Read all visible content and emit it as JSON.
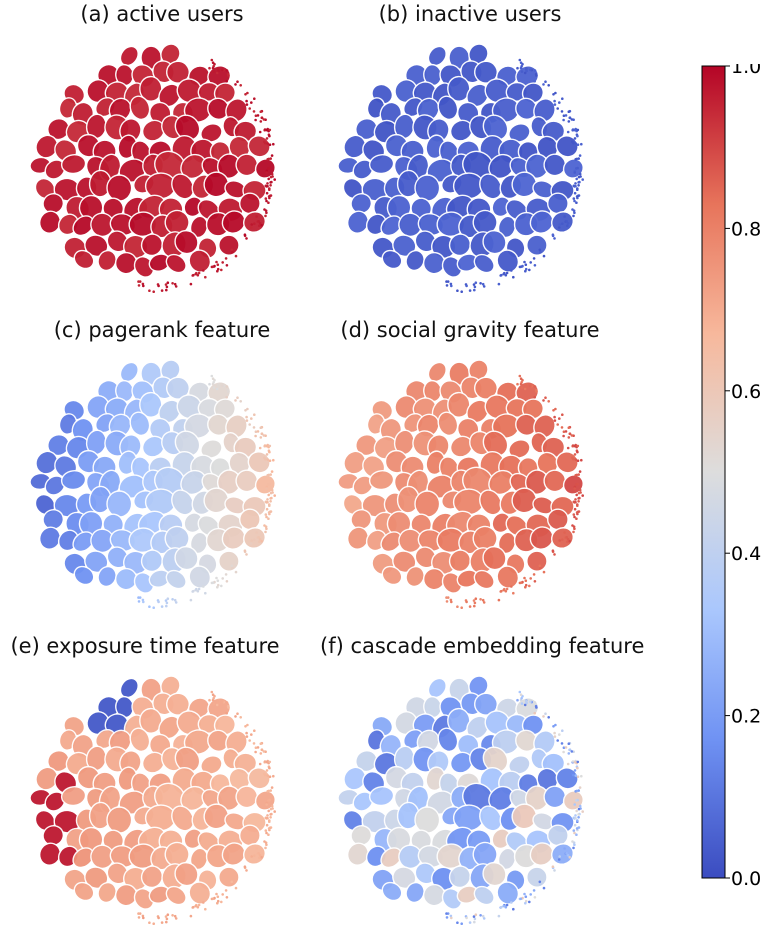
{
  "chart_data": {
    "type": "scatter",
    "description_style": "t-SNE style embedding panels colored by normalized value with coolwarm colormap",
    "colormap": [
      "#3b4cc0",
      "#6f92f3",
      "#aac7fd",
      "#dddddd",
      "#f7b89c",
      "#e7745b",
      "#b40426"
    ],
    "colorbar": {
      "range": [
        0.0,
        1.0
      ],
      "ticks": [
        "0.0",
        "0.2",
        "0.4",
        "0.6",
        "0.8",
        "1.0"
      ]
    },
    "panels": [
      {
        "id": "a",
        "title": "(a) active users",
        "mode": "uniform",
        "base": 0.97,
        "spread": 0.05
      },
      {
        "id": "b",
        "title": "(b) inactive users",
        "mode": "uniform",
        "base": 0.04,
        "spread": 0.04
      },
      {
        "id": "c",
        "title": "(c) pagerank feature",
        "mode": "gradient_x",
        "base": 0.05,
        "spread": 0.6
      },
      {
        "id": "d",
        "title": "(d) social gravity feature",
        "mode": "gradient_x",
        "base": 0.72,
        "spread": 0.16
      },
      {
        "id": "e",
        "title": "(e) exposure time feature",
        "mode": "gradient_x_rev",
        "base": 0.68,
        "spread": 0.12
      },
      {
        "id": "f",
        "title": "(f) cascade embedding feature",
        "mode": "mixed",
        "base": 0.35,
        "spread": 0.25
      }
    ]
  }
}
